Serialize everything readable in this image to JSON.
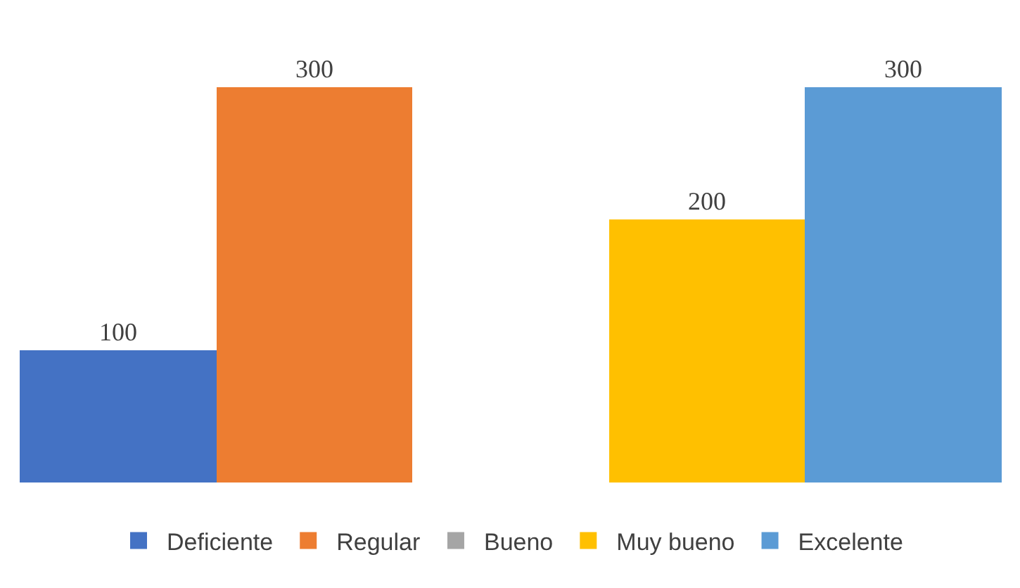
{
  "chart_data": {
    "type": "bar",
    "categories": [
      null
    ],
    "series": [
      {
        "name": "Deficiente",
        "color": "#4472c4",
        "values": [
          100
        ]
      },
      {
        "name": "Regular",
        "color": "#ed7d31",
        "values": [
          300
        ]
      },
      {
        "name": "Bueno",
        "color": "#a5a5a5",
        "values": [
          null
        ]
      },
      {
        "name": "Muy bueno",
        "color": "#ffc000",
        "values": [
          200
        ]
      },
      {
        "name": "Excelente",
        "color": "#5b9bd5",
        "values": [
          300
        ]
      }
    ],
    "data_labels": true,
    "legend": "bottom"
  }
}
